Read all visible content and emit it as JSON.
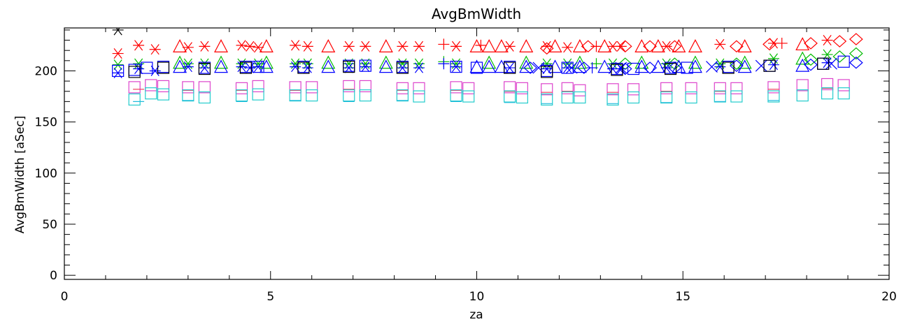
{
  "chart_data": {
    "type": "scatter",
    "title": "AvgBmWidth",
    "xlabel": "za",
    "ylabel": "AvgBmWidth  [aSec]",
    "xlim": [
      0,
      20
    ],
    "ylim": [
      -4,
      242
    ],
    "x_ticks": [
      0,
      5,
      10,
      15,
      20
    ],
    "y_ticks": [
      0,
      50,
      100,
      150,
      200
    ],
    "grid": false,
    "legend": "none",
    "series": [
      {
        "color": "#ff0000",
        "marker": "asterisk",
        "points": [
          [
            1.3,
            217
          ],
          [
            1.8,
            225
          ],
          [
            2.2,
            221
          ],
          [
            3.0,
            223
          ],
          [
            3.4,
            224
          ],
          [
            4.3,
            225
          ],
          [
            4.5,
            224
          ],
          [
            4.7,
            223
          ],
          [
            5.6,
            225
          ],
          [
            5.9,
            224
          ],
          [
            6.9,
            224
          ],
          [
            7.3,
            224
          ],
          [
            8.2,
            224
          ],
          [
            8.6,
            224
          ],
          [
            9.5,
            224
          ],
          [
            10.8,
            224
          ],
          [
            11.7,
            224
          ],
          [
            12.2,
            223
          ],
          [
            13.3,
            224
          ],
          [
            13.5,
            224
          ],
          [
            14.6,
            224
          ],
          [
            15.9,
            226
          ],
          [
            17.2,
            227
          ],
          [
            18.5,
            230
          ]
        ]
      },
      {
        "color": "#ff0000",
        "marker": "triangle",
        "points": [
          [
            2.8,
            224
          ],
          [
            3.8,
            224
          ],
          [
            4.9,
            224
          ],
          [
            6.4,
            224
          ],
          [
            7.8,
            224
          ],
          [
            10.0,
            224
          ],
          [
            10.3,
            224
          ],
          [
            10.6,
            224
          ],
          [
            11.2,
            224
          ],
          [
            11.9,
            224
          ],
          [
            12.5,
            224
          ],
          [
            13.1,
            224
          ],
          [
            14.0,
            224
          ],
          [
            14.4,
            224
          ],
          [
            14.9,
            224
          ],
          [
            15.3,
            224
          ],
          [
            16.5,
            224
          ],
          [
            17.9,
            226
          ]
        ]
      },
      {
        "color": "#ff0000",
        "marker": "diamond",
        "points": [
          [
            11.7,
            222
          ],
          [
            12.7,
            224
          ],
          [
            13.6,
            224
          ],
          [
            14.2,
            224
          ],
          [
            14.8,
            224
          ],
          [
            16.3,
            224
          ],
          [
            17.1,
            226
          ],
          [
            18.1,
            227
          ],
          [
            18.8,
            229
          ],
          [
            19.2,
            231
          ]
        ]
      },
      {
        "color": "#ff0000",
        "marker": "plus",
        "points": [
          [
            9.2,
            226
          ],
          [
            10.1,
            225
          ],
          [
            12.9,
            224
          ],
          [
            17.4,
            227
          ]
        ]
      },
      {
        "color": "#00bb00",
        "marker": "asterisk",
        "points": [
          [
            1.3,
            206
          ],
          [
            1.8,
            207
          ],
          [
            3.0,
            207
          ],
          [
            3.4,
            207
          ],
          [
            4.3,
            207
          ],
          [
            4.7,
            207
          ],
          [
            5.6,
            207
          ],
          [
            5.9,
            207
          ],
          [
            6.9,
            207
          ],
          [
            7.3,
            207
          ],
          [
            8.2,
            207
          ],
          [
            8.6,
            207
          ],
          [
            9.5,
            207
          ],
          [
            11.7,
            207
          ],
          [
            12.2,
            207
          ],
          [
            13.3,
            207
          ],
          [
            14.6,
            207
          ],
          [
            15.9,
            207
          ],
          [
            17.2,
            212
          ],
          [
            18.5,
            216
          ]
        ]
      },
      {
        "color": "#00bb00",
        "marker": "triangle",
        "points": [
          [
            2.8,
            208
          ],
          [
            3.8,
            208
          ],
          [
            4.9,
            208
          ],
          [
            6.4,
            208
          ],
          [
            7.8,
            208
          ],
          [
            10.3,
            208
          ],
          [
            11.2,
            208
          ],
          [
            12.5,
            208
          ],
          [
            14.0,
            208
          ],
          [
            15.3,
            208
          ],
          [
            16.5,
            208
          ],
          [
            17.9,
            212
          ]
        ]
      },
      {
        "color": "#00bb00",
        "marker": "diamond",
        "points": [
          [
            13.6,
            207
          ],
          [
            14.8,
            207
          ],
          [
            16.3,
            207
          ],
          [
            18.1,
            211
          ],
          [
            18.8,
            214
          ],
          [
            19.2,
            217
          ]
        ]
      },
      {
        "color": "#00bb00",
        "marker": "plus",
        "points": [
          [
            9.2,
            209
          ],
          [
            12.9,
            207
          ]
        ]
      },
      {
        "color": "#0000ff",
        "marker": "asterisk",
        "points": [
          [
            1.3,
            198
          ],
          [
            1.8,
            202
          ],
          [
            2.2,
            200
          ],
          [
            3.0,
            204
          ],
          [
            3.4,
            203
          ],
          [
            4.3,
            204
          ],
          [
            4.5,
            203
          ],
          [
            4.7,
            204
          ],
          [
            5.6,
            204
          ],
          [
            5.9,
            203
          ],
          [
            6.9,
            203
          ],
          [
            7.3,
            204
          ],
          [
            8.2,
            203
          ],
          [
            8.6,
            203
          ],
          [
            9.5,
            204
          ],
          [
            10.8,
            203
          ],
          [
            11.7,
            202
          ],
          [
            12.2,
            203
          ],
          [
            13.3,
            202
          ],
          [
            13.5,
            202
          ],
          [
            14.6,
            203
          ],
          [
            15.9,
            204
          ],
          [
            17.2,
            206
          ],
          [
            18.5,
            208
          ]
        ]
      },
      {
        "color": "#0000ff",
        "marker": "triangle",
        "points": [
          [
            2.8,
            204
          ],
          [
            3.8,
            204
          ],
          [
            4.9,
            204
          ],
          [
            6.4,
            204
          ],
          [
            7.8,
            204
          ],
          [
            10.0,
            204
          ],
          [
            10.3,
            204
          ],
          [
            10.6,
            204
          ],
          [
            11.2,
            204
          ],
          [
            11.9,
            204
          ],
          [
            12.5,
            204
          ],
          [
            13.1,
            204
          ],
          [
            14.0,
            204
          ],
          [
            14.4,
            204
          ],
          [
            14.9,
            204
          ],
          [
            15.3,
            204
          ],
          [
            16.5,
            204
          ],
          [
            17.9,
            205
          ]
        ]
      },
      {
        "color": "#0000ff",
        "marker": "square",
        "points": [
          [
            1.3,
            200
          ],
          [
            1.7,
            201
          ],
          [
            2.0,
            203
          ],
          [
            2.4,
            204
          ],
          [
            3.4,
            203
          ],
          [
            4.4,
            204
          ],
          [
            4.7,
            204
          ],
          [
            5.8,
            204
          ],
          [
            6.9,
            205
          ],
          [
            7.3,
            205
          ],
          [
            8.2,
            204
          ],
          [
            9.5,
            204
          ],
          [
            10.0,
            203
          ],
          [
            10.8,
            204
          ],
          [
            11.7,
            200
          ],
          [
            12.2,
            203
          ],
          [
            13.4,
            202
          ],
          [
            13.8,
            202
          ],
          [
            14.7,
            203
          ],
          [
            15.1,
            203
          ],
          [
            16.1,
            204
          ],
          [
            17.1,
            205
          ],
          [
            18.4,
            207
          ],
          [
            18.9,
            209
          ]
        ]
      },
      {
        "color": "#0000ff",
        "marker": "diamond",
        "points": [
          [
            11.3,
            203
          ],
          [
            12.6,
            203
          ],
          [
            13.6,
            202
          ],
          [
            14.2,
            203
          ],
          [
            14.8,
            203
          ],
          [
            16.3,
            205
          ],
          [
            18.1,
            206
          ],
          [
            19.2,
            208
          ]
        ]
      },
      {
        "color": "#0000ff",
        "marker": "cross",
        "points": [
          [
            11.5,
            203
          ],
          [
            12.3,
            203
          ],
          [
            13.5,
            203
          ],
          [
            15.7,
            204
          ],
          [
            16.9,
            205
          ],
          [
            18.6,
            207
          ]
        ]
      },
      {
        "color": "#0000ff",
        "marker": "plus",
        "points": [
          [
            9.2,
            207
          ],
          [
            12.8,
            203
          ]
        ]
      },
      {
        "color": "#000000",
        "marker": "square",
        "points": [
          [
            1.7,
            199
          ],
          [
            2.4,
            203
          ],
          [
            3.4,
            202
          ],
          [
            4.4,
            203
          ],
          [
            5.8,
            203
          ],
          [
            6.9,
            204
          ],
          [
            8.2,
            203
          ],
          [
            10.8,
            203
          ],
          [
            11.7,
            199
          ],
          [
            13.4,
            201
          ],
          [
            14.7,
            202
          ],
          [
            16.1,
            203
          ],
          [
            17.1,
            205
          ],
          [
            18.4,
            207
          ]
        ]
      },
      {
        "color": "#000000",
        "marker": "asterisk",
        "points": [
          [
            1.3,
            240
          ]
        ]
      },
      {
        "color": "#dd44cc",
        "marker": "square",
        "points": [
          [
            1.7,
            184
          ],
          [
            2.1,
            186
          ],
          [
            2.4,
            185
          ],
          [
            3.0,
            184
          ],
          [
            3.4,
            184
          ],
          [
            4.3,
            183
          ],
          [
            4.7,
            185
          ],
          [
            5.6,
            184
          ],
          [
            6.0,
            184
          ],
          [
            6.9,
            185
          ],
          [
            7.3,
            185
          ],
          [
            8.2,
            183
          ],
          [
            8.6,
            183
          ],
          [
            9.5,
            184
          ],
          [
            9.8,
            183
          ],
          [
            10.8,
            184
          ],
          [
            11.1,
            183
          ],
          [
            11.7,
            182
          ],
          [
            12.2,
            183
          ],
          [
            12.5,
            181
          ],
          [
            13.3,
            182
          ],
          [
            13.8,
            182
          ],
          [
            14.6,
            183
          ],
          [
            15.2,
            183
          ],
          [
            15.9,
            183
          ],
          [
            16.3,
            183
          ],
          [
            17.2,
            184
          ],
          [
            17.9,
            186
          ],
          [
            18.5,
            187
          ],
          [
            18.9,
            186
          ]
        ]
      },
      {
        "color": "#ee3355",
        "marker": "dash",
        "points": [
          [
            1.8,
            182
          ],
          [
            3.0,
            181
          ],
          [
            4.3,
            181
          ],
          [
            5.6,
            181
          ],
          [
            6.9,
            182
          ],
          [
            8.2,
            181
          ],
          [
            9.5,
            181
          ],
          [
            10.8,
            180
          ],
          [
            11.7,
            179
          ],
          [
            12.2,
            180
          ],
          [
            13.3,
            179
          ],
          [
            14.6,
            180
          ],
          [
            15.9,
            180
          ],
          [
            17.2,
            182
          ],
          [
            18.5,
            183
          ]
        ]
      },
      {
        "color": "#22cccc",
        "marker": "square",
        "points": [
          [
            1.7,
            172
          ],
          [
            2.1,
            178
          ],
          [
            2.4,
            177
          ],
          [
            3.0,
            176
          ],
          [
            3.4,
            174
          ],
          [
            4.3,
            176
          ],
          [
            4.7,
            177
          ],
          [
            5.6,
            176
          ],
          [
            6.0,
            176
          ],
          [
            6.9,
            176
          ],
          [
            7.3,
            176
          ],
          [
            8.2,
            176
          ],
          [
            8.6,
            175
          ],
          [
            9.5,
            176
          ],
          [
            9.8,
            175
          ],
          [
            10.8,
            175
          ],
          [
            11.1,
            174
          ],
          [
            11.7,
            172
          ],
          [
            12.2,
            174
          ],
          [
            12.5,
            174
          ],
          [
            13.3,
            172
          ],
          [
            13.8,
            174
          ],
          [
            14.6,
            174
          ],
          [
            15.2,
            174
          ],
          [
            15.9,
            175
          ],
          [
            16.3,
            175
          ],
          [
            17.2,
            175
          ],
          [
            17.9,
            176
          ],
          [
            18.5,
            178
          ],
          [
            18.9,
            178
          ]
        ]
      },
      {
        "color": "#22bbdd",
        "marker": "dash",
        "points": [
          [
            1.8,
            170
          ],
          [
            3.0,
            171
          ],
          [
            4.3,
            170
          ],
          [
            5.6,
            171
          ],
          [
            6.9,
            170
          ],
          [
            8.2,
            171
          ],
          [
            9.5,
            170
          ],
          [
            10.8,
            169
          ],
          [
            11.7,
            168
          ],
          [
            13.3,
            168
          ],
          [
            14.6,
            169
          ],
          [
            15.9,
            170
          ],
          [
            17.2,
            171
          ]
        ]
      }
    ]
  }
}
